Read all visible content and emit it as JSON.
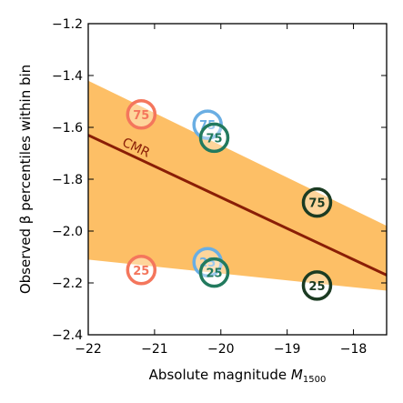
{
  "chart_data": {
    "type": "scatter",
    "title": "",
    "xlabel": "Absolute magnitude ",
    "xlabel_var": "M",
    "xlabel_sub": "1500",
    "ylabel": "Observed β percentiles within bin",
    "xlim": [
      -22,
      -17.5
    ],
    "ylim": [
      -2.4,
      -1.2
    ],
    "x_ticks": [
      -22,
      -21,
      -20,
      -19,
      -18
    ],
    "x_tick_labels": [
      "−22",
      "−21",
      "−20",
      "−19",
      "−18"
    ],
    "y_ticks": [
      -2.4,
      -2.2,
      -2.0,
      -1.8,
      -1.6,
      -1.4,
      -1.2
    ],
    "y_tick_labels": [
      "−2.4",
      "−2.2",
      "−2.0",
      "−1.8",
      "−1.6",
      "−1.4",
      "−1.2"
    ],
    "grid": false,
    "relation": {
      "label": "CMR",
      "color": "#8a1e06",
      "line": [
        [
          -22,
          -1.63
        ],
        [
          -17.5,
          -2.17
        ]
      ],
      "band_upper": [
        [
          -22,
          -1.42
        ],
        [
          -17.5,
          -1.98
        ]
      ],
      "band_lower": [
        [
          -22,
          -2.11
        ],
        [
          -17.5,
          -2.23
        ]
      ],
      "band_color": "#fdb44b"
    },
    "markers": [
      {
        "x": -21.2,
        "y": -1.55,
        "label": "75",
        "color": "#f4765c"
      },
      {
        "x": -21.2,
        "y": -2.15,
        "label": "25",
        "color": "#f4765c"
      },
      {
        "x": -20.2,
        "y": -1.59,
        "label": "75",
        "color": "#6aaee3"
      },
      {
        "x": -20.2,
        "y": -2.12,
        "label": "25",
        "color": "#6aaee3"
      },
      {
        "x": -20.1,
        "y": -1.64,
        "label": "75",
        "color": "#227a5e"
      },
      {
        "x": -20.1,
        "y": -2.16,
        "label": "25",
        "color": "#227a5e"
      },
      {
        "x": -18.55,
        "y": -1.89,
        "label": "75",
        "color": "#1b3b22"
      },
      {
        "x": -18.55,
        "y": -2.21,
        "label": "25",
        "color": "#1b3b22"
      }
    ]
  }
}
